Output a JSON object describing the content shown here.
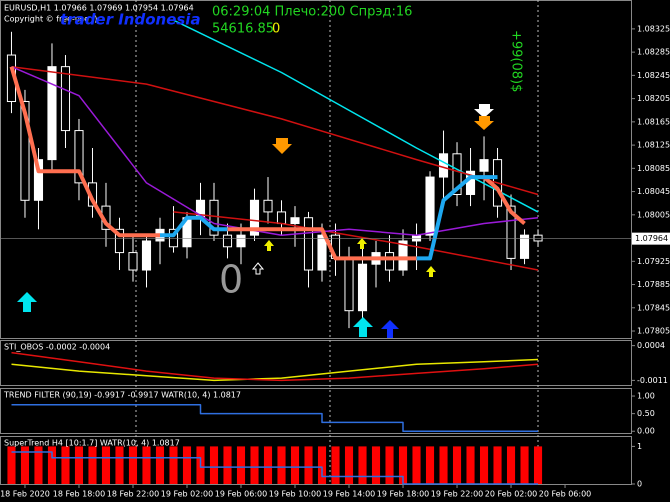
{
  "chart_data": [
    {
      "type": "candlestick",
      "title": "EURUSD,H1 1.07966 1.07969 1.07954 1.07964",
      "subtitle": "Copyright © free-use :)",
      "annotations": [
        "06:29:04 Плечо:200 Спрэд:16",
        "54616.85",
        "0",
        "trader Indonesia",
        "+99(08)$",
        "0"
      ],
      "xlim": [
        -0.85,
        45.96
      ],
      "xticks": [
        {
          "value": 1,
          "label": "18 Feb 2020"
        },
        {
          "value": 5,
          "label": "18 Feb 18:00"
        },
        {
          "value": 9,
          "label": "18 Feb 22:00"
        },
        {
          "value": 13,
          "label": "19 Feb 02:00"
        },
        {
          "value": 17,
          "label": "19 Feb 06:00"
        },
        {
          "value": 21,
          "label": "19 Feb 10:00"
        },
        {
          "value": 25,
          "label": "19 Feb 14:00"
        },
        {
          "value": 29,
          "label": "19 Feb 18:00"
        },
        {
          "value": 33,
          "label": "19 Feb 22:00"
        },
        {
          "value": 37,
          "label": "20 Feb 02:00"
        },
        {
          "value": 41,
          "label": "20 Feb 06:00"
        }
      ],
      "ylim": [
        1.07793,
        1.08373
      ],
      "yticks": [
        1.08325,
        1.08285,
        1.08245,
        1.08205,
        1.08165,
        1.08125,
        1.08085,
        1.08045,
        1.08005,
        1.07925,
        1.07885,
        1.07845,
        1.07805
      ],
      "current_price": 1.07964,
      "x": [
        0,
        1,
        2,
        3,
        4,
        5,
        6,
        7,
        8,
        9,
        10,
        11,
        12,
        13,
        14,
        15,
        16,
        17,
        18,
        19,
        20,
        21,
        22,
        23,
        24,
        25,
        26,
        27,
        28,
        29,
        30,
        31,
        32,
        33,
        34,
        35,
        36,
        37,
        38,
        39
      ],
      "open": [
        1.0828,
        1.082,
        1.0803,
        1.081,
        1.0826,
        1.0815,
        1.0806,
        1.0802,
        1.0798,
        1.0794,
        1.0791,
        1.0796,
        1.0798,
        1.0795,
        1.08,
        1.0803,
        1.0797,
        1.0795,
        1.0797,
        1.0803,
        1.0801,
        1.0799,
        1.08,
        1.0791,
        1.0797,
        1.0793,
        1.0784,
        1.0792,
        1.0794,
        1.0791,
        1.0796,
        1.0797,
        1.0807,
        1.0811,
        1.0804,
        1.0808,
        1.081,
        1.0802,
        1.0793,
        1.0797
      ],
      "high": [
        1.0832,
        1.0822,
        1.0812,
        1.083,
        1.0828,
        1.0817,
        1.0812,
        1.0806,
        1.08,
        1.0797,
        1.0797,
        1.08,
        1.0802,
        1.0801,
        1.0806,
        1.0806,
        1.0799,
        1.0799,
        1.0805,
        1.0807,
        1.0803,
        1.0802,
        1.0801,
        1.0799,
        1.0799,
        1.0795,
        1.0795,
        1.0796,
        1.0797,
        1.0798,
        1.0799,
        1.0808,
        1.0815,
        1.0813,
        1.0812,
        1.0814,
        1.0812,
        1.0804,
        1.0798,
        1.0798
      ],
      "low": [
        1.0818,
        1.08,
        1.0798,
        1.0808,
        1.0812,
        1.0803,
        1.08,
        1.0795,
        1.0791,
        1.0789,
        1.0788,
        1.0792,
        1.0794,
        1.0793,
        1.0797,
        1.0796,
        1.0793,
        1.0792,
        1.0796,
        1.0799,
        1.0797,
        1.0795,
        1.0788,
        1.0789,
        1.079,
        1.0781,
        1.0782,
        1.0788,
        1.0789,
        1.079,
        1.0791,
        1.0796,
        1.0803,
        1.0802,
        1.0802,
        1.0803,
        1.08,
        1.0791,
        1.0792,
        1.0795
      ],
      "close": [
        1.082,
        1.0803,
        1.081,
        1.0826,
        1.0815,
        1.0806,
        1.0802,
        1.0798,
        1.0794,
        1.0791,
        1.0796,
        1.0798,
        1.0795,
        1.08,
        1.0803,
        1.0797,
        1.0795,
        1.0797,
        1.0803,
        1.0801,
        1.0799,
        1.08,
        1.0791,
        1.0797,
        1.0793,
        1.0784,
        1.0792,
        1.0794,
        1.0791,
        1.0796,
        1.0797,
        1.0807,
        1.0811,
        1.0804,
        1.0808,
        1.081,
        1.0802,
        1.0793,
        1.0797,
        1.0796
      ],
      "series": [
        {
          "color": "#00e5ee",
          "width": 1.5,
          "x": [
            12,
            20,
            30,
            39
          ],
          "values": [
            1.0834,
            1.0825,
            1.0812,
            1.0801
          ]
        },
        {
          "color": "#d01010",
          "width": 1.5,
          "x": [
            0,
            10,
            20,
            30,
            39
          ],
          "values": [
            1.0826,
            1.0823,
            1.0817,
            1.081,
            1.0804
          ]
        },
        {
          "color": "#d01010",
          "width": 1.5,
          "x": [
            12,
            20,
            30,
            39
          ],
          "values": [
            1.0801,
            1.0799,
            1.0795,
            1.0791
          ]
        },
        {
          "color": "#9a1ad8",
          "width": 1.5,
          "x": [
            0,
            5,
            10,
            15,
            20,
            25,
            30,
            35,
            39
          ],
          "values": [
            1.0826,
            1.0821,
            1.0806,
            1.0799,
            1.0797,
            1.0798,
            1.0797,
            1.0799,
            1.08
          ]
        },
        {
          "color": "#ff6f50",
          "width": 4,
          "x": [
            0,
            1,
            2,
            3,
            4,
            5,
            6,
            7,
            8,
            9,
            10,
            11,
            12,
            13,
            14,
            15,
            16,
            17,
            18,
            19,
            20,
            21,
            22,
            23,
            24,
            25,
            26,
            27,
            28,
            29,
            30,
            31,
            32,
            33,
            34,
            35,
            36,
            37,
            38,
            39
          ],
          "values": [
            1.0826,
            1.0818,
            1.0808,
            1.0808,
            1.0808,
            1.0808,
            1.0803,
            1.0799,
            1.0797,
            1.0797,
            1.0797,
            1.0797,
            null,
            null,
            null,
            null,
            1.0798,
            1.0798,
            1.0798,
            1.0798,
            1.0798,
            1.0798,
            1.0798,
            1.0798,
            1.0793,
            1.0793,
            1.0793,
            1.0793,
            1.0793,
            1.0793,
            1.0793,
            null,
            null,
            null,
            null,
            1.0807,
            1.0805,
            1.0801,
            1.0799,
            null
          ]
        },
        {
          "color": "#1ea8f0",
          "width": 4,
          "x": [
            0,
            1,
            2,
            3,
            4,
            5,
            6,
            7,
            8,
            9,
            10,
            11,
            12,
            13,
            14,
            15,
            16,
            17,
            18,
            19,
            20,
            21,
            22,
            23,
            24,
            25,
            26,
            27,
            28,
            29,
            30,
            31,
            32,
            33,
            34,
            35,
            36,
            37,
            38,
            39
          ],
          "values": [
            null,
            null,
            null,
            null,
            null,
            null,
            null,
            null,
            null,
            null,
            null,
            1.0797,
            1.0797,
            1.08,
            1.08,
            1.0798,
            1.0798,
            null,
            null,
            null,
            null,
            null,
            null,
            null,
            null,
            null,
            null,
            null,
            null,
            null,
            1.0793,
            1.0793,
            1.0803,
            1.0805,
            1.0807,
            1.0807,
            1.0807,
            null,
            null,
            null
          ]
        }
      ]
    },
    {
      "type": "line",
      "title": "STI_OBOS -0.0002 -0.0004",
      "ylim": [
        -0.0013,
        0.0006
      ],
      "yticks": [
        0.0004,
        -0.0011
      ],
      "series": [
        {
          "color": "#e8e800",
          "width": 1.5,
          "x": [
            0,
            5,
            10,
            15,
            20,
            25,
            30,
            35,
            39
          ],
          "values": [
            -0.0004,
            -0.0007,
            -0.0009,
            -0.0011,
            -0.001,
            -0.0007,
            -0.0004,
            -0.0003,
            -0.0002
          ]
        },
        {
          "color": "#e01010",
          "width": 1.5,
          "x": [
            0,
            5,
            10,
            15,
            20,
            25,
            30,
            35,
            39
          ],
          "values": [
            0.0001,
            -0.0003,
            -0.0007,
            -0.001,
            -0.0011,
            -0.001,
            -0.0008,
            -0.0006,
            -0.0004
          ]
        }
      ]
    },
    {
      "type": "line",
      "title": "TREND FILTER (90,19) -0.9917 -0.9917  WATR(10, 4) 1.0817",
      "ylim": [
        -0.05,
        1.2
      ],
      "yticks": [
        {
          "value": 1,
          "label": "1.00"
        },
        {
          "value": 0.5,
          "label": "0.50"
        },
        {
          "value": 0,
          "label": "0.00"
        }
      ],
      "series": [
        {
          "color": "#2f6fe0",
          "width": 1.5,
          "x": [
            0,
            14,
            14,
            23,
            23,
            29,
            29,
            39
          ],
          "values": [
            0.75,
            0.75,
            0.5,
            0.5,
            0.25,
            0.25,
            0,
            0
          ]
        }
      ]
    },
    {
      "type": "bar",
      "title": "SuperTrend H4 [10:1.7]  WATR(10, 4) 1.0817",
      "ylim": [
        0,
        1.25
      ],
      "yticks": [
        1,
        0
      ],
      "bars": {
        "color": "#ff0000",
        "x": [
          0,
          1,
          2,
          3,
          4,
          5,
          6,
          7,
          8,
          9,
          10,
          11,
          12,
          13,
          14,
          15,
          16,
          17,
          18,
          19,
          20,
          21,
          22,
          23,
          24,
          25,
          26,
          27,
          28,
          29,
          30,
          31,
          32,
          33,
          34,
          35,
          36,
          37,
          38,
          39
        ],
        "values": [
          1,
          1,
          1,
          1,
          1,
          1,
          1,
          1,
          1,
          1,
          1,
          1,
          1,
          1,
          1,
          1,
          1,
          1,
          1,
          1,
          1,
          1,
          1,
          1,
          1,
          1,
          1,
          1,
          1,
          1,
          1,
          1,
          1,
          1,
          1,
          1,
          1,
          1,
          1,
          1
        ]
      },
      "series": [
        {
          "color": "#2f6fe0",
          "width": 1.5,
          "x": [
            0,
            3,
            3,
            14,
            14,
            23,
            23,
            29,
            29,
            39
          ],
          "values": [
            0.85,
            0.85,
            0.7,
            0.7,
            0.45,
            0.45,
            0.2,
            0.2,
            0,
            0
          ]
        }
      ]
    }
  ]
}
